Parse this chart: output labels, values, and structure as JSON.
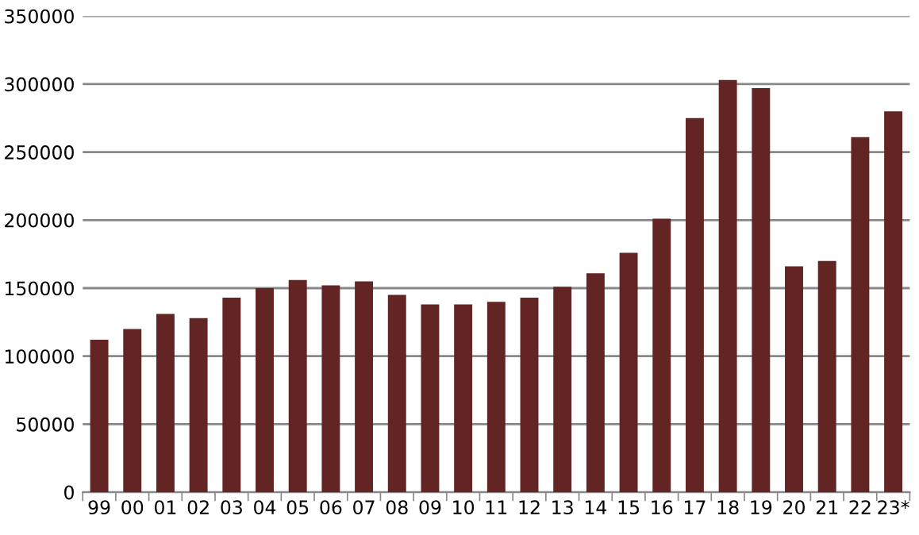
{
  "chart_data": {
    "type": "bar",
    "categories": [
      "99",
      "00",
      "01",
      "02",
      "03",
      "04",
      "05",
      "06",
      "07",
      "08",
      "09",
      "10",
      "11",
      "12",
      "13",
      "14",
      "15",
      "16",
      "17",
      "18",
      "19",
      "20",
      "21",
      "22",
      "23*"
    ],
    "values": [
      112000,
      120000,
      131000,
      128000,
      143000,
      150000,
      156000,
      152000,
      155000,
      145000,
      138000,
      138000,
      140000,
      143000,
      151000,
      161000,
      176000,
      201000,
      275000,
      303000,
      297000,
      166000,
      170000,
      261000,
      280000
    ],
    "color": "#632523",
    "ylim": [
      0,
      350000
    ],
    "yticks": [
      0,
      50000,
      100000,
      150000,
      200000,
      250000,
      300000,
      350000
    ],
    "grid": "y",
    "legend": false
  }
}
